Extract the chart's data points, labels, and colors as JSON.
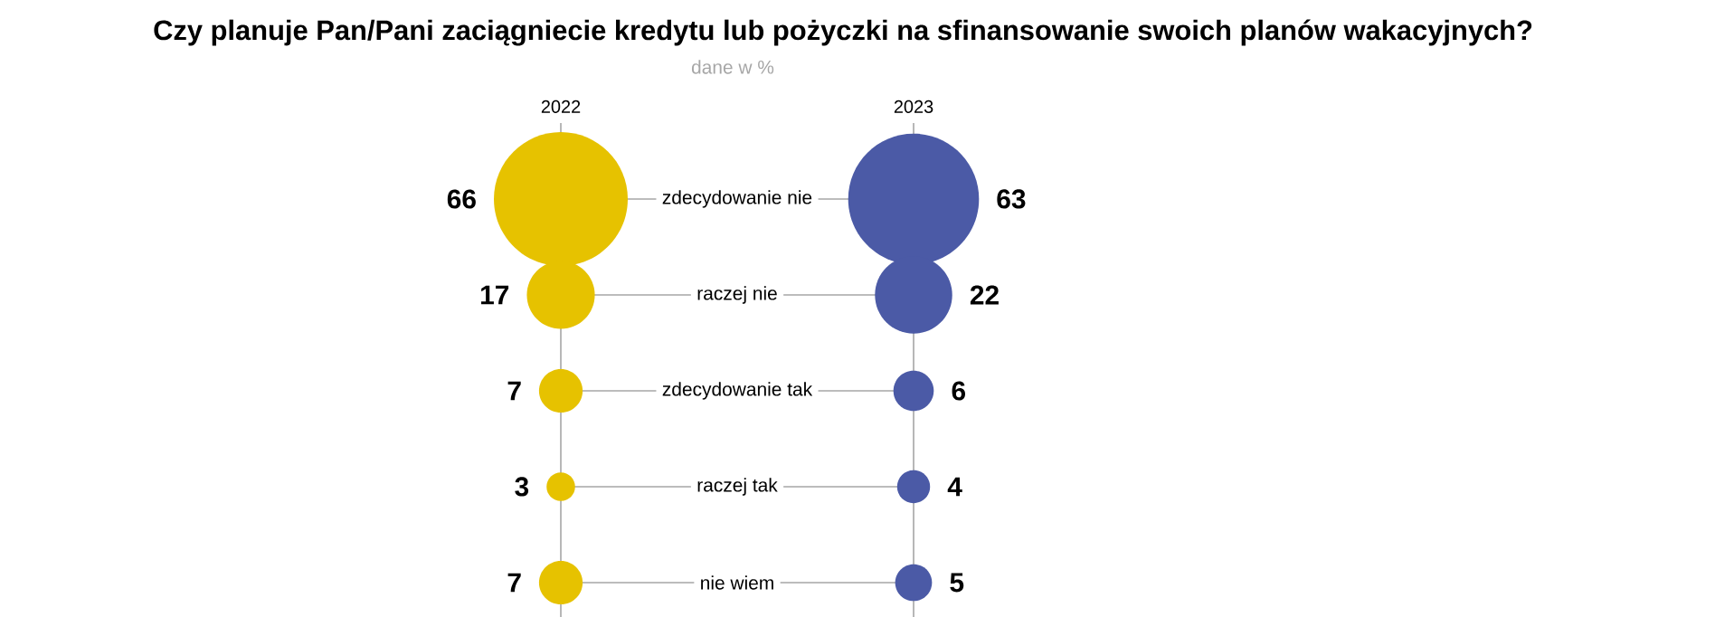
{
  "chart_data": {
    "type": "other",
    "title": "Czy planuje Pan/Pani zaciągniecie kredytu lub pożyczki na sfinansowanie swoich planów wakacyjnych?",
    "subtitle": "dane w %",
    "data_labels": true,
    "annotations": [
      "2022",
      "2023"
    ],
    "categories": [
      "zdecydowanie nie",
      "raczej nie",
      "zdecydowanie tak",
      "raczej tak",
      "nie wiem"
    ],
    "series": [
      {
        "color": "#e6c200",
        "values": [
          66,
          17,
          7,
          3,
          7
        ]
      },
      {
        "color": "#4b5aa6",
        "values": [
          63,
          22,
          6,
          4,
          5
        ]
      }
    ]
  }
}
